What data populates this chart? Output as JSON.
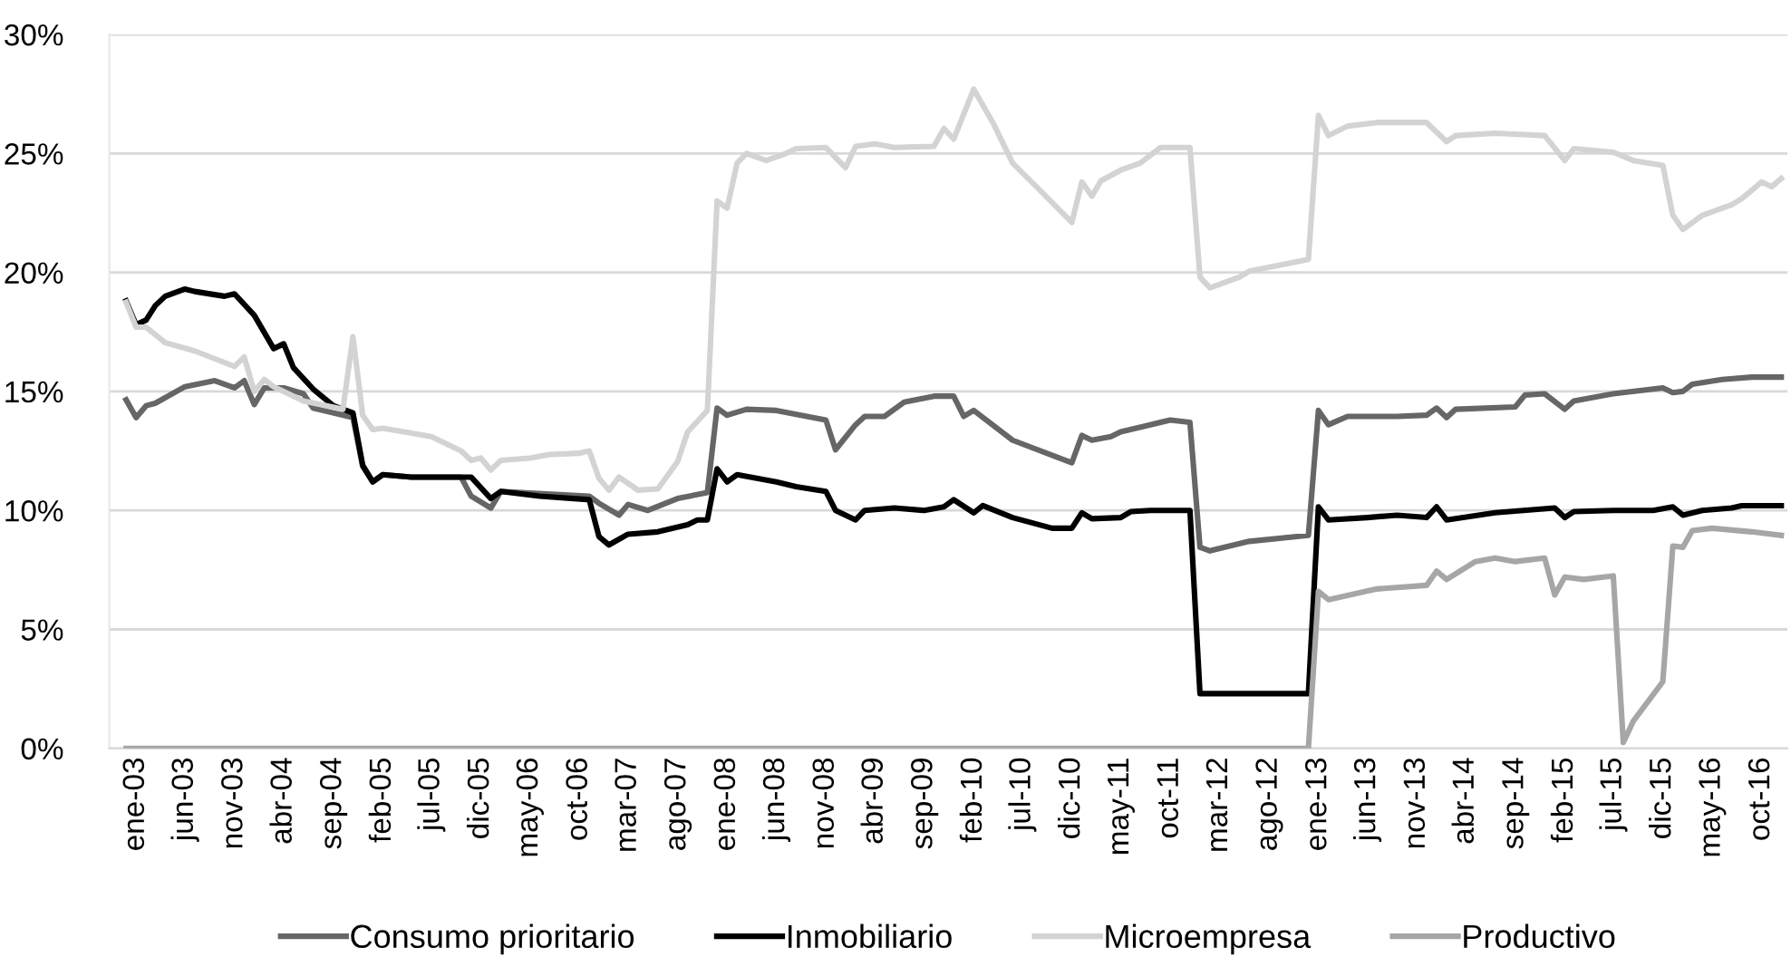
{
  "chart_data": {
    "type": "line",
    "ylim": [
      0,
      30
    ],
    "yticks": [
      {
        "value": 0,
        "label": "0%"
      },
      {
        "value": 5,
        "label": "5%"
      },
      {
        "value": 10,
        "label": "10%"
      },
      {
        "value": 15,
        "label": "15%"
      },
      {
        "value": 20,
        "label": "20%"
      },
      {
        "value": 25,
        "label": "25%"
      },
      {
        "value": 30,
        "label": "30%"
      }
    ],
    "xlim": [
      "2002-10-10",
      "2016-12-20"
    ],
    "xticks": [
      {
        "value": "2003-01",
        "label": "ene-03"
      },
      {
        "value": "2003-06",
        "label": "jun-03"
      },
      {
        "value": "2003-11",
        "label": "nov-03"
      },
      {
        "value": "2004-04",
        "label": "abr-04"
      },
      {
        "value": "2004-09",
        "label": "sep-04"
      },
      {
        "value": "2005-02",
        "label": "feb-05"
      },
      {
        "value": "2005-07",
        "label": "jul-05"
      },
      {
        "value": "2005-12",
        "label": "dic-05"
      },
      {
        "value": "2006-05",
        "label": "may-06"
      },
      {
        "value": "2006-10",
        "label": "oct-06"
      },
      {
        "value": "2007-03",
        "label": "mar-07"
      },
      {
        "value": "2007-08",
        "label": "ago-07"
      },
      {
        "value": "2008-01",
        "label": "ene-08"
      },
      {
        "value": "2008-06",
        "label": "jun-08"
      },
      {
        "value": "2008-11",
        "label": "nov-08"
      },
      {
        "value": "2009-04",
        "label": "abr-09"
      },
      {
        "value": "2009-09",
        "label": "sep-09"
      },
      {
        "value": "2010-02",
        "label": "feb-10"
      },
      {
        "value": "2010-07",
        "label": "jul-10"
      },
      {
        "value": "2010-12",
        "label": "dic-10"
      },
      {
        "value": "2011-05",
        "label": "may-11"
      },
      {
        "value": "2011-10",
        "label": "oct-11"
      },
      {
        "value": "2012-03",
        "label": "mar-12"
      },
      {
        "value": "2012-08",
        "label": "ago-12"
      },
      {
        "value": "2013-01",
        "label": "ene-13"
      },
      {
        "value": "2013-06",
        "label": "jun-13"
      },
      {
        "value": "2013-11",
        "label": "nov-13"
      },
      {
        "value": "2014-04",
        "label": "abr-14"
      },
      {
        "value": "2014-09",
        "label": "sep-14"
      },
      {
        "value": "2015-02",
        "label": "feb-15"
      },
      {
        "value": "2015-07",
        "label": "jul-15"
      },
      {
        "value": "2015-12",
        "label": "dic-15"
      },
      {
        "value": "2016-05",
        "label": "may-16"
      },
      {
        "value": "2016-10",
        "label": "oct-16"
      }
    ],
    "grid": "y",
    "legend": "bottom",
    "marker": "none",
    "line_style": "solid",
    "series": [
      {
        "name": "Consumo prioritario",
        "color": "#666666",
        "x": [
          "2002-12",
          "2003-01",
          "2003-02",
          "2003-03",
          "2003-06",
          "2003-09",
          "2003-11",
          "2003-12",
          "2004-01",
          "2004-02",
          "2004-04",
          "2004-06",
          "2004-07",
          "2004-11",
          "2004-12",
          "2005-01",
          "2005-02",
          "2005-05",
          "2005-10",
          "2005-11",
          "2006-01",
          "2006-02",
          "2006-11",
          "2006-12",
          "2007-02",
          "2007-03",
          "2007-05",
          "2007-08",
          "2007-11",
          "2007-12",
          "2008-01",
          "2008-03",
          "2008-06",
          "2008-11",
          "2008-12",
          "2009-02",
          "2009-03",
          "2009-05",
          "2009-07",
          "2009-10",
          "2009-12",
          "2010-01",
          "2010-02",
          "2010-06",
          "2010-12",
          "2011-01",
          "2011-02",
          "2011-04",
          "2011-05",
          "2011-08",
          "2011-10",
          "2011-12",
          "2012-01",
          "2012-02",
          "2012-06",
          "2012-12",
          "2013-01",
          "2013-02",
          "2013-04",
          "2013-09",
          "2013-12",
          "2014-01",
          "2014-02",
          "2014-03",
          "2014-09",
          "2014-10",
          "2014-12",
          "2015-02",
          "2015-03",
          "2015-07",
          "2015-12",
          "2016-01",
          "2016-02",
          "2016-03",
          "2016-06",
          "2016-09",
          "2016-12"
        ],
        "values": [
          14.65,
          13.9,
          14.4,
          14.5,
          15.2,
          15.45,
          15.15,
          15.45,
          14.45,
          15.15,
          15.15,
          14.9,
          14.3,
          13.9,
          11.85,
          11.2,
          11.5,
          11.4,
          11.4,
          10.6,
          10.1,
          10.8,
          10.6,
          10.3,
          9.8,
          10.25,
          10.0,
          10.5,
          10.75,
          14.3,
          14.0,
          14.25,
          14.2,
          13.8,
          12.55,
          13.6,
          13.95,
          13.95,
          14.55,
          14.8,
          14.8,
          13.95,
          14.2,
          12.95,
          12.0,
          13.15,
          12.95,
          13.1,
          13.3,
          13.6,
          13.8,
          13.7,
          8.45,
          8.3,
          8.7,
          8.95,
          14.2,
          13.6,
          13.95,
          13.95,
          14.0,
          14.3,
          13.9,
          14.25,
          14.35,
          14.85,
          14.9,
          14.25,
          14.6,
          14.9,
          15.15,
          14.95,
          15.0,
          15.3,
          15.5,
          15.6,
          15.6
        ]
      },
      {
        "name": "Inmobiliario",
        "color": "#000000",
        "x": [
          "2002-12",
          "2003-01",
          "2003-02",
          "2003-03",
          "2003-04",
          "2003-06",
          "2003-07",
          "2003-10",
          "2003-11",
          "2004-01",
          "2004-03",
          "2004-04",
          "2004-05",
          "2004-07",
          "2004-09",
          "2004-11",
          "2004-12",
          "2005-01",
          "2005-02",
          "2005-05",
          "2005-11",
          "2006-01",
          "2006-02",
          "2006-06",
          "2006-11",
          "2006-12",
          "2007-01",
          "2007-03",
          "2007-06",
          "2007-09",
          "2007-10",
          "2007-11",
          "2007-12",
          "2008-01",
          "2008-02",
          "2008-06",
          "2008-08",
          "2008-11",
          "2008-12",
          "2009-02",
          "2009-03",
          "2009-06",
          "2009-09",
          "2009-11",
          "2009-12",
          "2010-02",
          "2010-03",
          "2010-06",
          "2010-10",
          "2010-12",
          "2011-01",
          "2011-02",
          "2011-05",
          "2011-06",
          "2011-08",
          "2011-12",
          "2012-01",
          "2012-12",
          "2013-01",
          "2013-02",
          "2013-06",
          "2013-09",
          "2013-12",
          "2014-01",
          "2014-02",
          "2014-07",
          "2015-01",
          "2015-02",
          "2015-03",
          "2015-07",
          "2015-11",
          "2016-01",
          "2016-02",
          "2016-04",
          "2016-07",
          "2016-08",
          "2016-12"
        ],
        "values": [
          18.8,
          17.8,
          18.0,
          18.6,
          19.0,
          19.3,
          19.2,
          19.0,
          19.1,
          18.2,
          16.8,
          17.0,
          16.0,
          15.1,
          14.4,
          14.1,
          11.9,
          11.2,
          11.5,
          11.4,
          11.4,
          10.5,
          10.8,
          10.6,
          10.45,
          8.9,
          8.55,
          9.0,
          9.1,
          9.4,
          9.6,
          9.6,
          11.75,
          11.2,
          11.5,
          11.2,
          11.0,
          10.8,
          10.0,
          9.6,
          10.0,
          10.1,
          10.0,
          10.15,
          10.45,
          9.9,
          10.2,
          9.7,
          9.25,
          9.25,
          9.9,
          9.65,
          9.7,
          9.95,
          10.0,
          10.0,
          2.3,
          2.3,
          10.15,
          9.6,
          9.7,
          9.8,
          9.7,
          10.15,
          9.6,
          9.9,
          10.1,
          9.7,
          9.95,
          10.0,
          10.0,
          10.15,
          9.8,
          10.0,
          10.1,
          10.2,
          10.2
        ]
      },
      {
        "name": "Microempresa",
        "color": "#d3d3d3",
        "x": [
          "2002-12",
          "2003-01",
          "2003-02",
          "2003-04",
          "2003-07",
          "2003-11",
          "2003-12",
          "2004-01",
          "2004-02",
          "2004-03",
          "2004-06",
          "2004-10",
          "2004-11",
          "2004-12",
          "2005-01",
          "2005-02",
          "2005-07",
          "2005-10",
          "2005-11",
          "2005-12",
          "2006-01",
          "2006-02",
          "2006-05",
          "2006-07",
          "2006-10",
          "2006-11",
          "2006-12",
          "2007-01",
          "2007-02",
          "2007-04",
          "2007-06",
          "2007-08",
          "2007-09",
          "2007-11",
          "2007-12",
          "2008-01",
          "2008-02",
          "2008-03",
          "2008-05",
          "2008-07",
          "2008-08",
          "2008-11",
          "2009-01",
          "2009-02",
          "2009-04",
          "2009-06",
          "2009-10",
          "2009-11",
          "2009-12",
          "2010-02",
          "2010-04",
          "2010-06",
          "2010-09",
          "2010-12",
          "2011-01",
          "2011-02",
          "2011-03",
          "2011-05",
          "2011-07",
          "2011-09",
          "2011-12",
          "2012-01",
          "2012-02",
          "2012-05",
          "2012-06",
          "2012-12",
          "2013-01",
          "2013-02",
          "2013-04",
          "2013-07",
          "2013-12",
          "2014-02",
          "2014-03",
          "2014-07",
          "2014-12",
          "2015-02",
          "2015-03",
          "2015-07",
          "2015-09",
          "2015-12",
          "2016-01",
          "2016-02",
          "2016-04",
          "2016-07",
          "2016-08",
          "2016-10",
          "2016-11",
          "2016-12"
        ],
        "values": [
          18.75,
          17.7,
          17.7,
          17.05,
          16.7,
          16.05,
          16.45,
          15.0,
          15.5,
          15.2,
          14.6,
          14.25,
          17.3,
          14.0,
          13.4,
          13.45,
          13.1,
          12.5,
          12.1,
          12.2,
          11.7,
          12.1,
          12.2,
          12.35,
          12.4,
          12.5,
          11.35,
          10.85,
          11.4,
          10.85,
          10.9,
          12.05,
          13.3,
          14.2,
          23.0,
          22.7,
          24.6,
          25.0,
          24.7,
          25.0,
          25.2,
          25.25,
          24.4,
          25.3,
          25.4,
          25.25,
          25.3,
          26.05,
          25.6,
          27.7,
          26.3,
          24.6,
          23.35,
          22.1,
          23.8,
          23.2,
          23.85,
          24.3,
          24.6,
          25.25,
          25.25,
          19.8,
          19.35,
          19.8,
          20.05,
          20.55,
          26.6,
          25.75,
          26.15,
          26.3,
          26.3,
          25.5,
          25.75,
          25.85,
          25.75,
          24.7,
          25.2,
          25.05,
          24.7,
          24.5,
          22.4,
          21.8,
          22.4,
          22.85,
          23.1,
          23.8,
          23.6,
          23.95
        ]
      },
      {
        "name": "Productivo",
        "color": "#a6a6a6",
        "x": [
          "2002-12",
          "2012-12",
          "2013-01",
          "2013-02",
          "2013-07",
          "2013-12",
          "2014-01",
          "2014-02",
          "2014-05",
          "2014-07",
          "2014-09",
          "2014-12",
          "2015-01",
          "2015-02",
          "2015-04",
          "2015-07",
          "2015-08",
          "2015-09",
          "2015-12",
          "2016-01",
          "2016-02",
          "2016-03",
          "2016-05",
          "2016-09",
          "2016-12"
        ],
        "values": [
          0,
          0,
          6.6,
          6.25,
          6.7,
          6.85,
          7.45,
          7.1,
          7.85,
          8.0,
          7.85,
          8.0,
          6.45,
          7.2,
          7.1,
          7.25,
          0.25,
          1.15,
          2.8,
          8.5,
          8.45,
          9.15,
          9.25,
          9.1,
          8.95
        ]
      }
    ]
  }
}
